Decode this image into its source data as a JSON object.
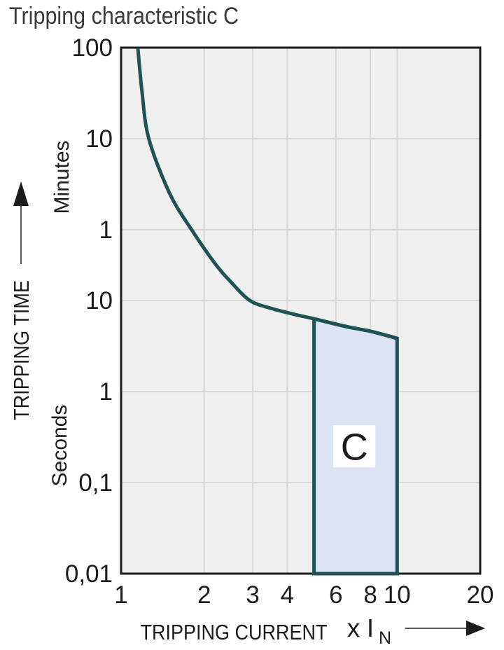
{
  "title": "Tripping characteristic C",
  "colors": {
    "title_text": "#3a3a3a",
    "text": "#1c1c1c",
    "curve": "#1f5252",
    "region_fill": "#dce3f3",
    "region_label_bg": "#ffffff",
    "plot_bg": "#efefef",
    "grid": "#d6d6d6",
    "plot_border": "#1b1b1b",
    "arrow_shaft": "#5a5a5a"
  },
  "chart_data": {
    "type": "line",
    "title": "Tripping characteristic C",
    "x_axis": {
      "label": "TRIPPING CURRENT",
      "multiplier_label": "x I",
      "multiplier_sub": "N",
      "scale": "log",
      "range": [
        1,
        20
      ],
      "ticks": [
        {
          "value": 1,
          "label": "1"
        },
        {
          "value": 2,
          "label": "2"
        },
        {
          "value": 3,
          "label": "3"
        },
        {
          "value": 4,
          "label": "4"
        },
        {
          "value": 6,
          "label": "6"
        },
        {
          "value": 8,
          "label": "8"
        },
        {
          "value": 10,
          "label": "10"
        },
        {
          "value": 20,
          "label": "20"
        }
      ],
      "gridlines": [
        2,
        3,
        4,
        6,
        8,
        10
      ]
    },
    "y_axis": {
      "label": "TRIPPING TIME",
      "unit_top": "Minutes",
      "unit_bottom": "Seconds",
      "scale": "log",
      "range_seconds": [
        0.01,
        6000
      ],
      "ticks": [
        {
          "seconds": 6000,
          "label": "100"
        },
        {
          "seconds": 600,
          "label": "10"
        },
        {
          "seconds": 60,
          "label": "1"
        },
        {
          "seconds": 10,
          "label": "10"
        },
        {
          "seconds": 1,
          "label": "1"
        },
        {
          "seconds": 0.1,
          "label": "0,1"
        },
        {
          "seconds": 0.01,
          "label": "0,01"
        }
      ],
      "gridlines_seconds": [
        600,
        60,
        10,
        1,
        0.1
      ]
    },
    "series": [
      {
        "name": "tripping-time-limit-curve",
        "points_x_seconds": [
          [
            1.15,
            6000
          ],
          [
            1.19,
            2000
          ],
          [
            1.26,
            600
          ],
          [
            1.5,
            150
          ],
          [
            1.8,
            60
          ],
          [
            2.2,
            25
          ],
          [
            2.5,
            16
          ],
          [
            2.93,
            10
          ],
          [
            3.5,
            8.2
          ],
          [
            4.2,
            7.1
          ],
          [
            5,
            6.3
          ],
          [
            6.5,
            5.2
          ],
          [
            8,
            4.6
          ],
          [
            10,
            3.85
          ]
        ]
      }
    ],
    "region": {
      "label": "C",
      "x_range": [
        5,
        10
      ],
      "bottom_seconds": 0.01,
      "top_points_x_seconds": [
        [
          5,
          6.3
        ],
        [
          6.5,
          5.2
        ],
        [
          8,
          4.6
        ],
        [
          10,
          3.85
        ]
      ],
      "label_pos": {
        "x": 7,
        "seconds": 0.25
      }
    }
  }
}
